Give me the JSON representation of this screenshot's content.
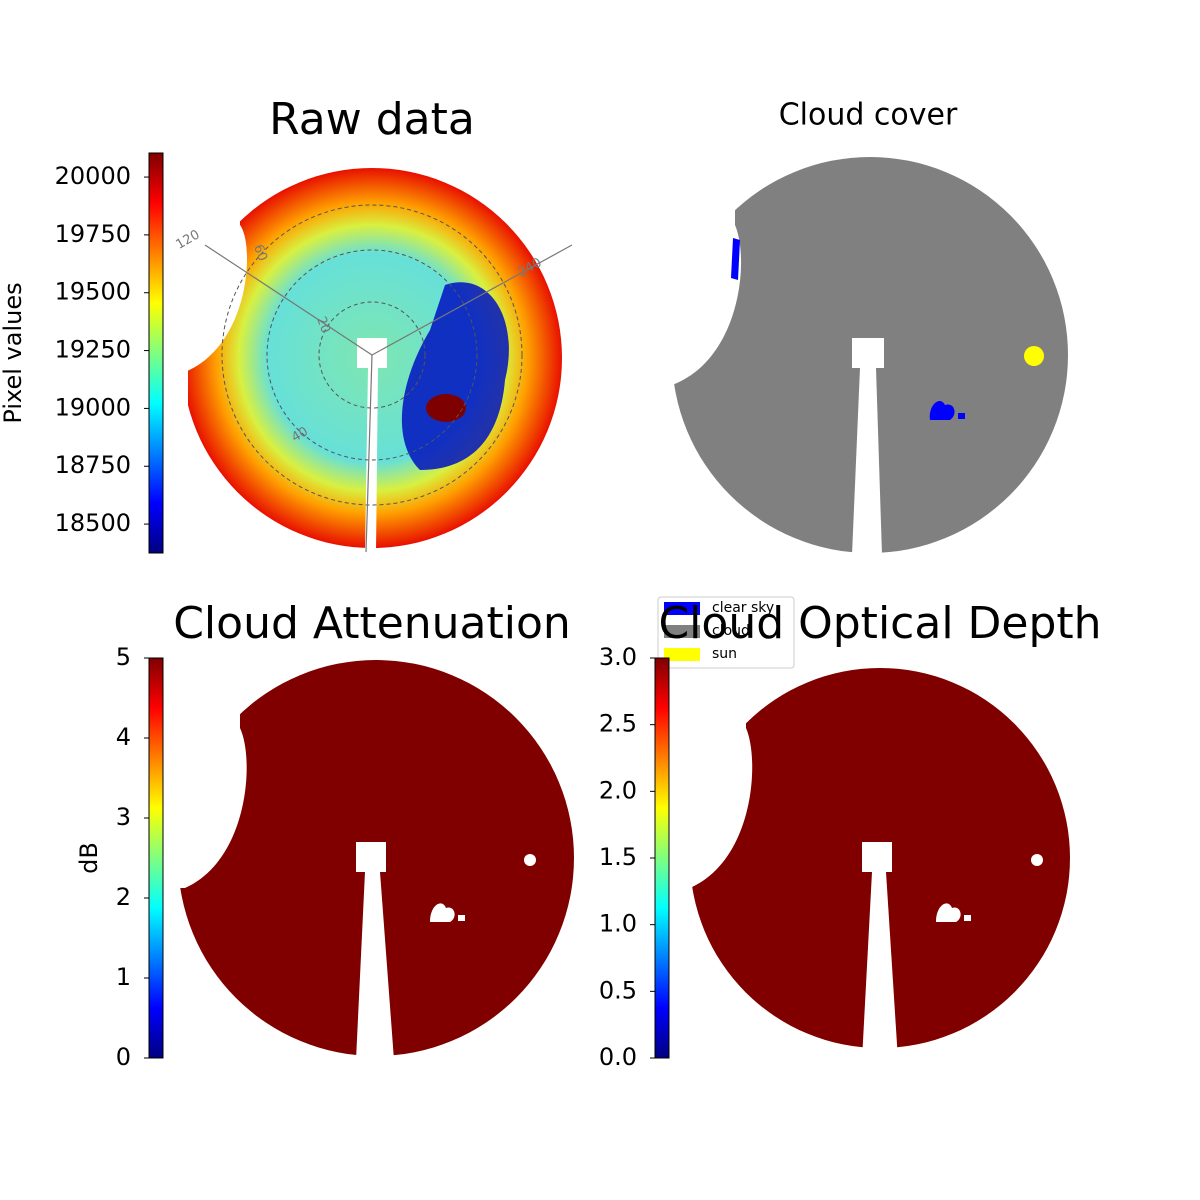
{
  "chart_data": [
    {
      "type": "image",
      "title": "Raw data",
      "colorbar": {
        "label": "Pixel values",
        "lim": [
          18375,
          20104
        ],
        "ticks": [
          18500,
          18750,
          19000,
          19250,
          19500,
          19750,
          20000
        ]
      },
      "annotations": [
        "120",
        "240",
        "20",
        "40",
        "60"
      ]
    },
    {
      "type": "image",
      "title": "Cloud cover",
      "legend": [
        {
          "name": "clear sky",
          "color": "#0000ff"
        },
        {
          "name": "cloud",
          "color": "#808080"
        },
        {
          "name": "sun",
          "color": "#ffff00"
        }
      ]
    },
    {
      "type": "image",
      "title": "Cloud Attenuation",
      "colorbar": {
        "label": "dB",
        "lim": [
          0,
          5
        ],
        "ticks": [
          0,
          1,
          2,
          3,
          4,
          5
        ]
      }
    },
    {
      "type": "image",
      "title": "Cloud Optical Depth",
      "colorbar": {
        "lim": [
          0,
          3
        ],
        "ticks": [
          {
            "value": 0,
            "label": "0.0"
          },
          0.5,
          {
            "value": 1,
            "label": "1.0"
          },
          1.5,
          {
            "value": 2,
            "label": "2.0"
          },
          2.5,
          {
            "value": 3,
            "label": "3.0"
          }
        ]
      }
    }
  ]
}
